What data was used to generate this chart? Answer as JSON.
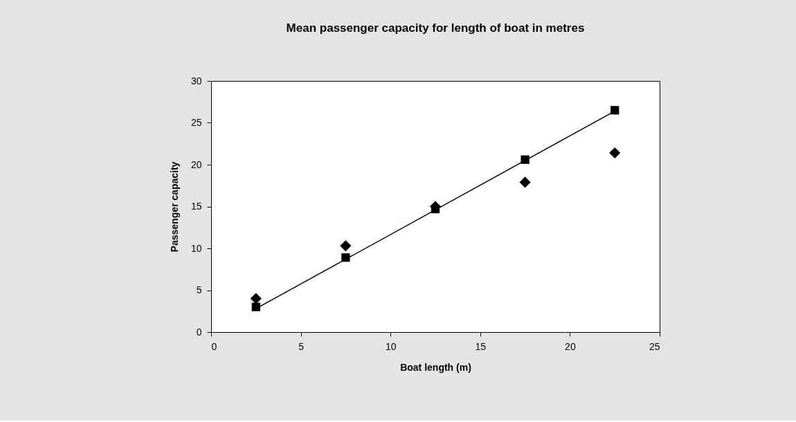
{
  "chart_data": {
    "type": "scatter",
    "title": "Mean passenger capacity for length of boat in metres",
    "xlabel": "Boat length (m)",
    "ylabel": "Passenger capacity",
    "x": [
      2.5,
      7.5,
      12.5,
      17.5,
      22.5
    ],
    "series": [
      {
        "color": "#000000",
        "marker": "diamond",
        "values": [
          4.0,
          10.3,
          15.0,
          17.9,
          21.4
        ]
      },
      {
        "color": "#000000",
        "marker": "square",
        "values": [
          3.0,
          8.9,
          14.7,
          20.6,
          26.5
        ]
      },
      {
        "type": "line",
        "color": "#000000",
        "x": [
          2.5,
          22.5
        ],
        "values": [
          2.8,
          26.4
        ]
      }
    ],
    "xlim": [
      0,
      25
    ],
    "ylim": [
      0,
      30
    ],
    "xticks": [
      0,
      5,
      10,
      15,
      20,
      25
    ],
    "yticks": [
      0,
      5,
      10,
      15,
      20,
      25,
      30
    ],
    "grid": false,
    "legend": false
  }
}
